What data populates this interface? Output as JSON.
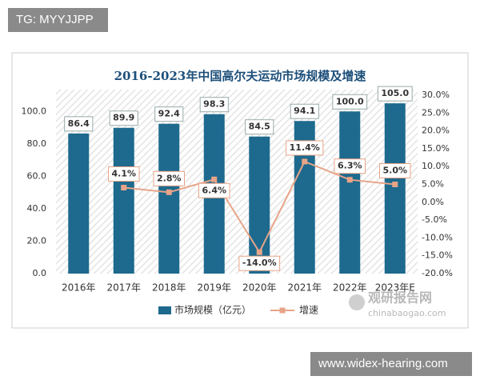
{
  "header_tag": "TG: MYYJJPP",
  "footer_tag": "www.widex-hearing.com",
  "watermark": {
    "name": "观研报告网",
    "site": "chinabaogao.com"
  },
  "chart_data": {
    "type": "bar",
    "title": "2016-2023年中国高尔夫运动市场规模及增速",
    "categories": [
      "2016年",
      "2017年",
      "2018年",
      "2019年",
      "2020年",
      "2021年",
      "2022年",
      "2023年E"
    ],
    "series": [
      {
        "name": "市场规模（亿元）",
        "type": "bar",
        "color": "#1d6a8e",
        "values": [
          86.4,
          89.9,
          92.4,
          98.3,
          84.5,
          94.1,
          100.0,
          105.0
        ],
        "value_labels": [
          "86.4",
          "89.9",
          "92.4",
          "98.3",
          "84.5",
          "94.1",
          "100.0",
          "105.0"
        ]
      },
      {
        "name": "增速",
        "type": "line",
        "axis": "y2",
        "color": "#e8a488",
        "values": [
          null,
          4.1,
          2.8,
          6.4,
          -14.0,
          11.4,
          6.3,
          5.0
        ],
        "value_labels": [
          null,
          "4.1%",
          "2.8%",
          "6.4%",
          "-14.0%",
          "11.4%",
          "6.3%",
          "5.0%"
        ]
      }
    ],
    "ylim": [
      0,
      110
    ],
    "yticks": [
      {
        "value": 0,
        "label": "0.0"
      },
      {
        "value": 20,
        "label": "20.0"
      },
      {
        "value": 40,
        "label": "40.0"
      },
      {
        "value": 60,
        "label": "60.0"
      },
      {
        "value": 80,
        "label": "80.0"
      },
      {
        "value": 100,
        "label": "100.0"
      }
    ],
    "y2lim": [
      -20,
      30
    ],
    "y2ticks": [
      {
        "value": 30,
        "label": "30.0%"
      },
      {
        "value": 25,
        "label": "25.0%"
      },
      {
        "value": 20,
        "label": "20.0%"
      },
      {
        "value": 15,
        "label": "15.0%"
      },
      {
        "value": 10,
        "label": "10.0%"
      },
      {
        "value": 5,
        "label": "5.0%"
      },
      {
        "value": 0,
        "label": "0.0%"
      },
      {
        "value": -5,
        "label": "-5.0%"
      },
      {
        "value": -10,
        "label": "-10.0%"
      },
      {
        "value": -15,
        "label": "-15.0%"
      },
      {
        "value": -20,
        "label": "-20.0%"
      }
    ],
    "grid": false,
    "legend": "bottom"
  }
}
